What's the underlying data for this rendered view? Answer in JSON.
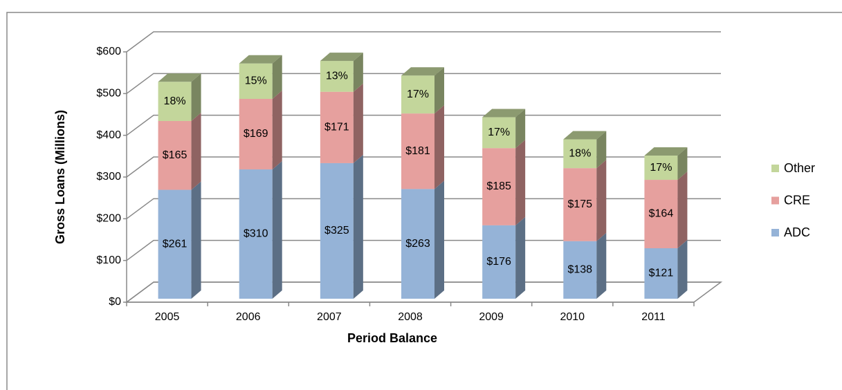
{
  "chart_data": {
    "type": "bar3d_stacked",
    "x_label": "Period Balance",
    "y_label": "Gross Loans (Millions)",
    "categories": [
      "2005",
      "2006",
      "2007",
      "2008",
      "2009",
      "2010",
      "2011"
    ],
    "series": [
      {
        "name": "ADC",
        "color": "#95b3d7",
        "values": [
          261,
          310,
          325,
          263,
          176,
          138,
          121
        ],
        "value_labels": [
          "$261",
          "$310",
          "$325",
          "$263",
          "$176",
          "$138",
          "$121"
        ]
      },
      {
        "name": "CRE",
        "color": "#e6a09e",
        "values": [
          165,
          169,
          171,
          181,
          185,
          175,
          164
        ],
        "value_labels": [
          "$165",
          "$169",
          "$171",
          "$181",
          "$185",
          "$175",
          "$164"
        ]
      },
      {
        "name": "Other",
        "color": "#c3d69b",
        "values": [
          94,
          85,
          74,
          91,
          74,
          69,
          58
        ],
        "share_labels": [
          "18%",
          "15%",
          "13%",
          "17%",
          "17%",
          "18%",
          "17%"
        ]
      }
    ],
    "ylim": [
      0,
      600
    ],
    "yticks": [
      {
        "value": 0,
        "label": "$0"
      },
      {
        "value": 100,
        "label": "$100"
      },
      {
        "value": 200,
        "label": "$200"
      },
      {
        "value": 300,
        "label": "$300"
      },
      {
        "value": 400,
        "label": "$400"
      },
      {
        "value": 500,
        "label": "$500"
      },
      {
        "value": 600,
        "label": "$600"
      }
    ],
    "grid": true,
    "legend": "right"
  }
}
